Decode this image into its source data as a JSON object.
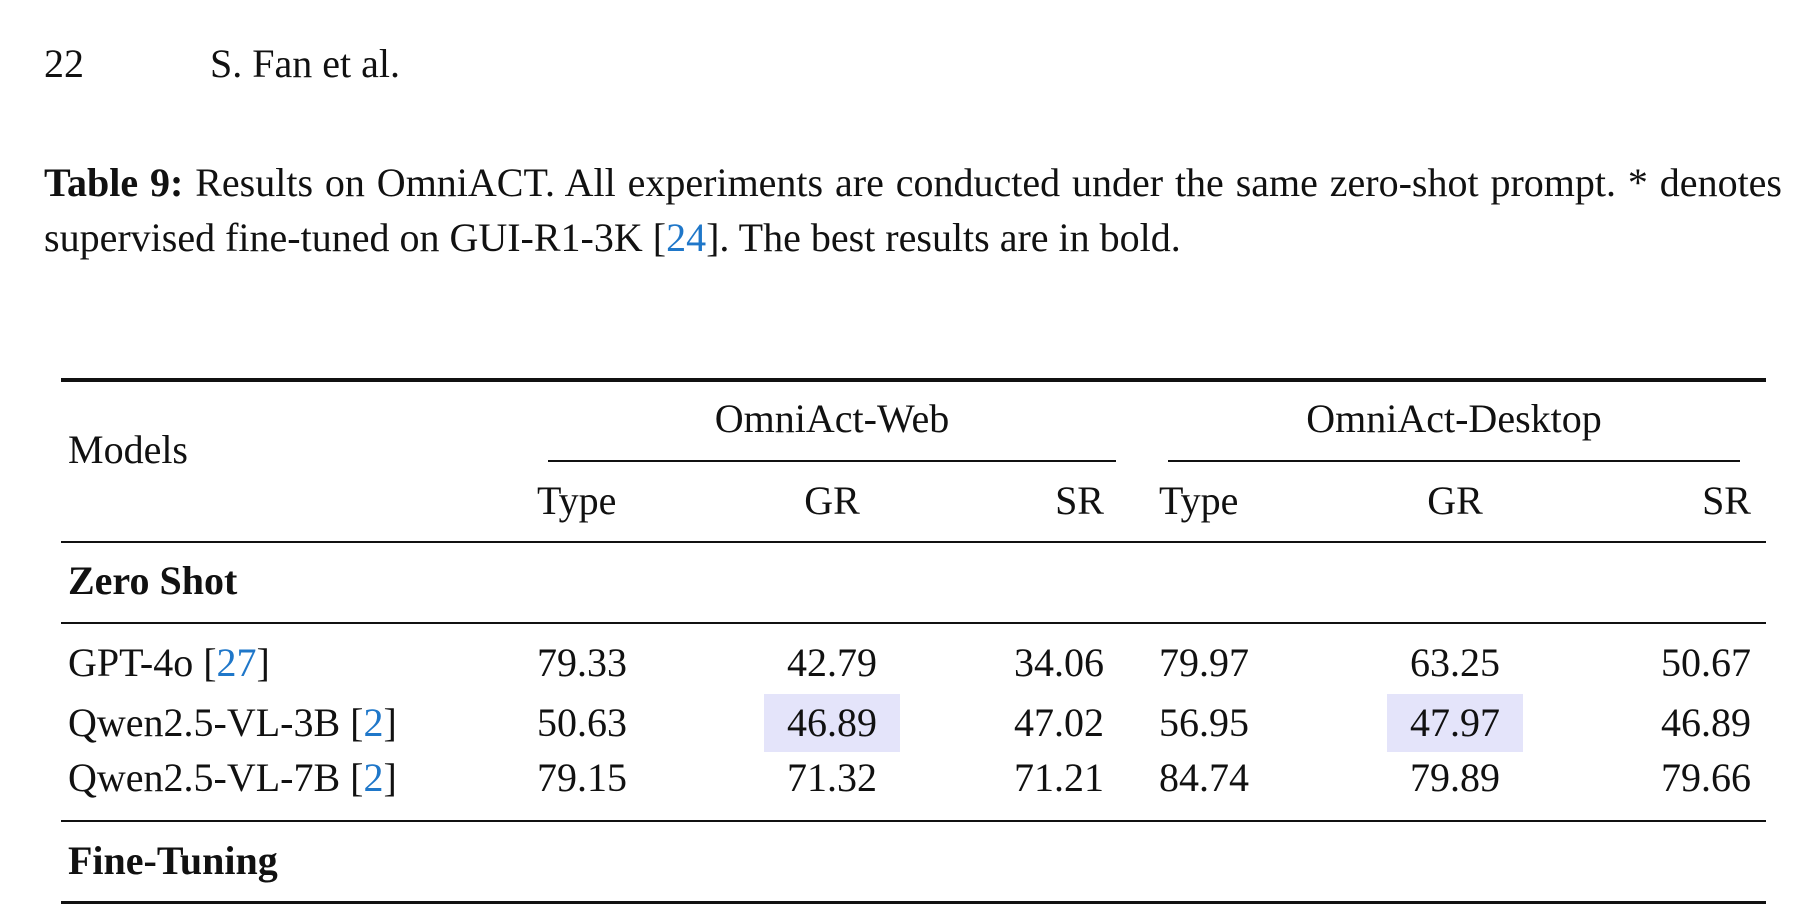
{
  "header": {
    "page": "22",
    "authors": "S. Fan et al."
  },
  "caption": {
    "label": "Table 9:",
    "parts": [
      "Results on OmniACT. All experiments are conducted under the same zero-shot prompt. * denotes supervised fine-tuned on GUI-R1-3K [",
      "24",
      "]. The best results are in bold."
    ]
  },
  "table": {
    "models_header": "Models",
    "groups": [
      "OmniAct-Web",
      "OmniAct-Desktop"
    ],
    "subheaders": [
      "Type",
      "GR",
      "SR",
      "Type",
      "GR",
      "SR"
    ],
    "sections": [
      {
        "title": "Zero Shot",
        "rows": [
          {
            "model": [
              "GPT-4o [",
              "27",
              "]"
            ],
            "cells": [
              "79.33",
              "42.79",
              "34.06",
              "79.97",
              "63.25",
              "50.67"
            ]
          },
          {
            "model": [
              "Qwen2.5-VL-3B [",
              "2",
              "]"
            ],
            "cells": [
              "50.63",
              "46.89",
              "47.02",
              "56.95",
              "47.97",
              "46.89"
            ],
            "highlighted": [
              1,
              4
            ]
          },
          {
            "model": [
              "Qwen2.5-VL-7B [",
              "2",
              "]"
            ],
            "cells": [
              "79.15",
              "71.32",
              "71.21",
              "84.74",
              "79.89",
              "79.66"
            ]
          }
        ]
      },
      {
        "title": "Fine-Tuning",
        "rows": []
      }
    ]
  }
}
